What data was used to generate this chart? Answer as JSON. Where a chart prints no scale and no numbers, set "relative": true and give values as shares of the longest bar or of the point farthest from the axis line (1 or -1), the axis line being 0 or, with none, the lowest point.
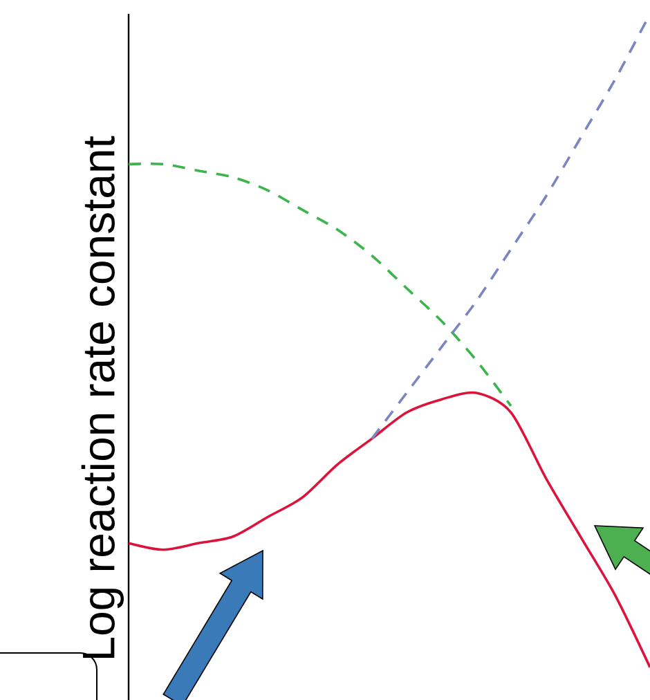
{
  "chart_data": {
    "type": "line",
    "relative": true,
    "ylabel": "Log reaction rate constant",
    "categories": [
      null,
      null,
      null,
      null,
      null,
      null,
      null,
      null,
      null,
      null,
      null,
      null,
      null,
      null,
      null,
      null
    ],
    "series": [
      {
        "color": "#dc143c",
        "line_style": "solid",
        "values": [
          0.19,
          0.18,
          0.19,
          0.2,
          0.23,
          0.26,
          0.31,
          0.35,
          0.39,
          0.41,
          0.42,
          0.39,
          0.29,
          0.2,
          0.11,
          0.0
        ]
      },
      {
        "color": "#3cb44b",
        "line_style": "dashed",
        "values": [
          0.77,
          0.77,
          0.76,
          0.75,
          0.73,
          0.7,
          0.67,
          0.63,
          0.58,
          0.53,
          0.47,
          0.4,
          null,
          null,
          null,
          null
        ]
      },
      {
        "color": "#7b86c0",
        "line_style": "dashed",
        "values": [
          null,
          null,
          null,
          null,
          null,
          null,
          null,
          0.35,
          0.42,
          0.49,
          0.56,
          0.64,
          0.72,
          0.81,
          0.9,
          1.0
        ]
      }
    ],
    "marker": "none"
  }
}
